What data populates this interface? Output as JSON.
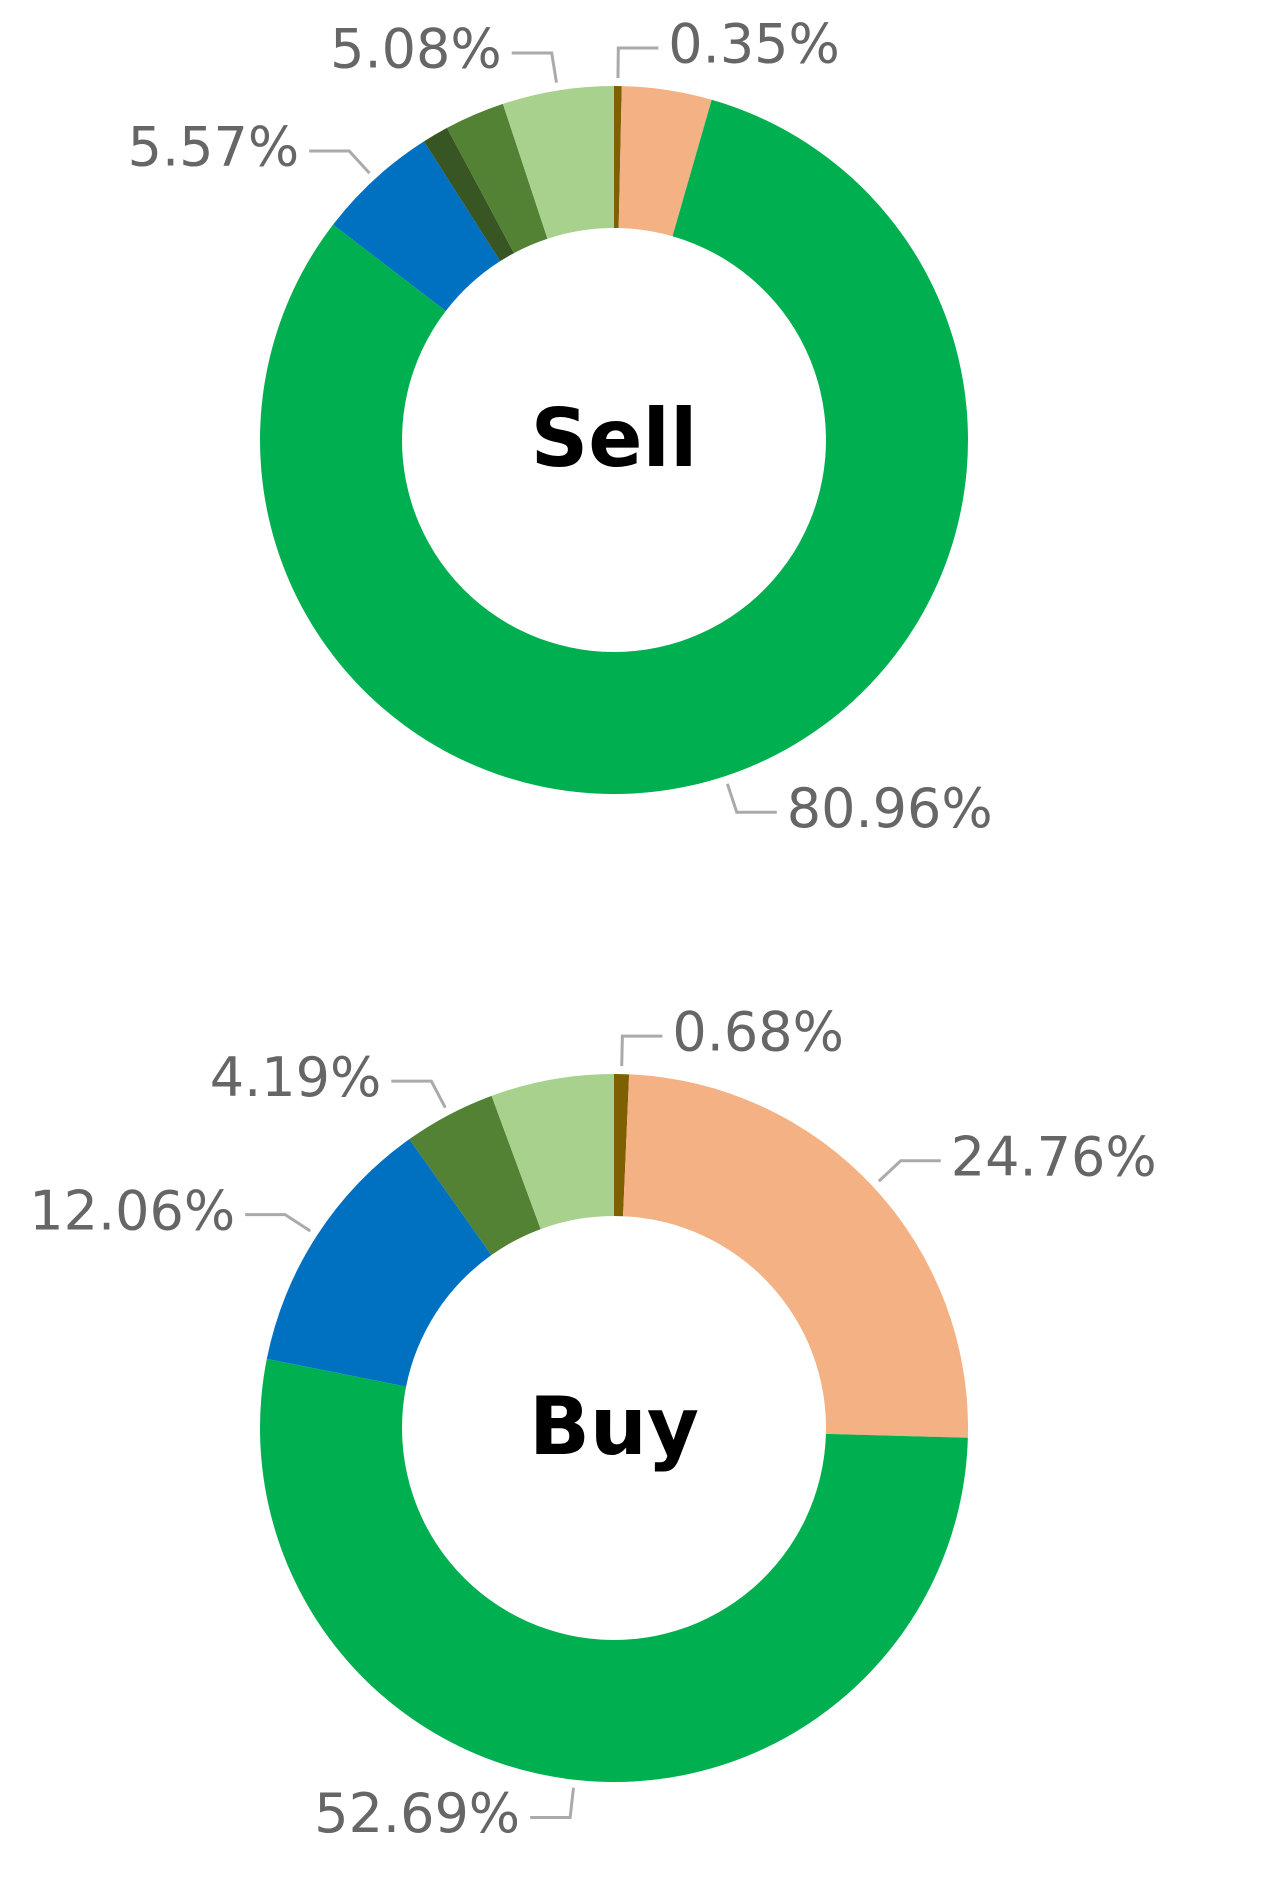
{
  "chart_data": [
    {
      "type": "donut",
      "title": "Sell",
      "values": [
        0.35,
        4.1,
        80.96,
        5.57,
        1.2,
        2.74,
        5.08
      ],
      "value_labels": [
        "0.35%",
        null,
        "80.96%",
        "5.57%",
        null,
        null,
        "5.08%"
      ],
      "colors": [
        "#7f6000",
        "#f4b183",
        "#00b050",
        "#0070c0",
        "#375623",
        "#548235",
        "#a9d18e"
      ]
    },
    {
      "type": "donut",
      "title": "Buy",
      "values": [
        0.68,
        24.76,
        52.69,
        12.06,
        4.19,
        5.62
      ],
      "value_labels": [
        "0.68%",
        "24.76%",
        "52.69%",
        "12.06%",
        "4.19%",
        null
      ],
      "colors": [
        "#7f6000",
        "#f4b183",
        "#00b050",
        "#0070c0",
        "#548235",
        "#a9d18e"
      ]
    }
  ]
}
